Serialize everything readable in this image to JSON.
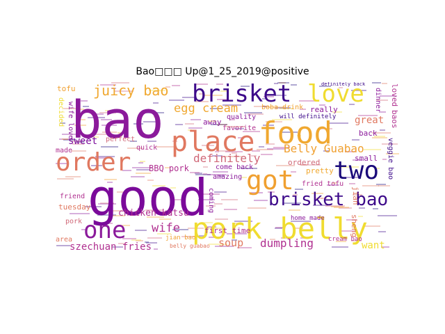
{
  "title": "Bao□□□ Up@1_25_2019@positive",
  "words": {
    "bao": "bao",
    "good": "good",
    "pork_belly": "pork belly",
    "food": "food",
    "place": "place",
    "brisket": "brisket",
    "love": "love",
    "order": "order",
    "got": "got",
    "two": "two",
    "one": "one",
    "brisket_bao": "brisket bao",
    "juicy_bao": "juicy bao",
    "egg_cream": "egg cream",
    "belly_guabao": "Belly Guabao",
    "definitely": "definitely",
    "dumpling": "dumpling",
    "wife": "wife",
    "soup": "soup",
    "want": "want",
    "szechuan_fries": "szechuan fries",
    "chicken_katsu": "chicken katsu",
    "bbq_pork": "BBQ pork",
    "sweet": "sweet",
    "great": "great",
    "tofu": "tofu",
    "boba_drink": "boba drink",
    "really": "really",
    "quality": "quality",
    "favorite": "favorite",
    "away": "away",
    "come_back": "come back",
    "amazing": "amazing",
    "first_time": "first time",
    "fried_tofu": "fried tofu",
    "ordered": "ordered",
    "pretty": "pretty",
    "small": "small",
    "back": "back",
    "dinner": "dinner",
    "veggie_bao": "veggie bao",
    "baos": "baos",
    "loved": "loved",
    "jian": "jian",
    "sheng": "sheng",
    "perfect": "perfect",
    "quick": "quick",
    "made": "made",
    "friend": "friend",
    "tuesday": "tuesday",
    "pork": "pork",
    "area": "area",
    "home_made": "home made",
    "cream_bao": "cream bao",
    "will_definitely": "will definitely",
    "definitely_back": "definitely back",
    "wife_love": "wife love",
    "decided": "decided",
    "coming": "coming",
    "jian_bao": "jian bao",
    "belly_guabao_small": "belly guabao"
  },
  "colors": {
    "purple": "#8b1a9b",
    "dark_purple": "#3d0a8a",
    "navy": "#1a0a7a",
    "yellow": "#f0dc30",
    "orange": "#f0a030",
    "salmon": "#e07860",
    "magenta": "#b03090",
    "rose": "#d06878"
  }
}
